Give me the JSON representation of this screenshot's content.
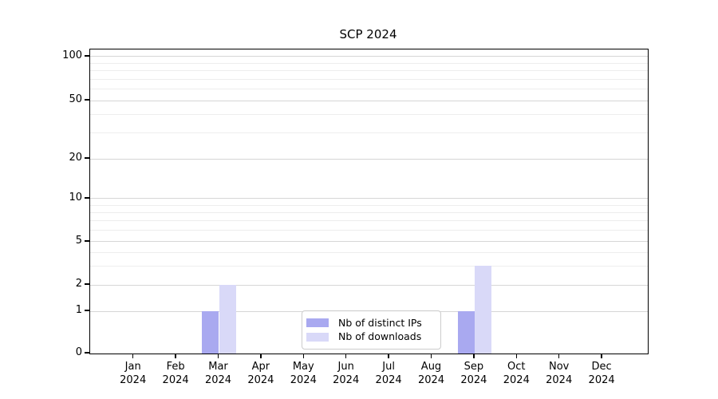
{
  "chart_data": {
    "type": "bar",
    "title": "SCP 2024",
    "categories": [
      "Jan 2024",
      "Feb 2024",
      "Mar 2024",
      "Apr 2024",
      "May 2024",
      "Jun 2024",
      "Jul 2024",
      "Aug 2024",
      "Sep 2024",
      "Oct 2024",
      "Nov 2024",
      "Dec 2024"
    ],
    "series": [
      {
        "name": "Nb of distinct IPs",
        "color": "#a9a9f0",
        "values": [
          0,
          0,
          1,
          0,
          0,
          0,
          0,
          0,
          1,
          0,
          0,
          0
        ]
      },
      {
        "name": "Nb of downloads",
        "color": "#d9d9f8",
        "values": [
          0,
          0,
          2,
          0,
          0,
          0,
          0,
          0,
          3,
          0,
          0,
          0
        ]
      }
    ],
    "xlabel": "",
    "ylabel": "",
    "yscale": "log-like with zero baseline",
    "yticks": [
      0,
      1,
      2,
      5,
      10,
      20,
      50,
      100
    ],
    "y_minor_ticks": [
      3,
      4,
      6,
      7,
      8,
      9,
      30,
      40,
      60,
      70,
      80,
      90
    ],
    "ylim": [
      0,
      115
    ],
    "grid": true,
    "legend_position": "lower center"
  },
  "colors": {
    "distinct_ips": "#a9a9f0",
    "downloads": "#d9d9f8",
    "grid_major": "#d6d6d6",
    "grid_minor": "#ededed",
    "axis": "#000000",
    "legend_border": "#cccccc"
  }
}
